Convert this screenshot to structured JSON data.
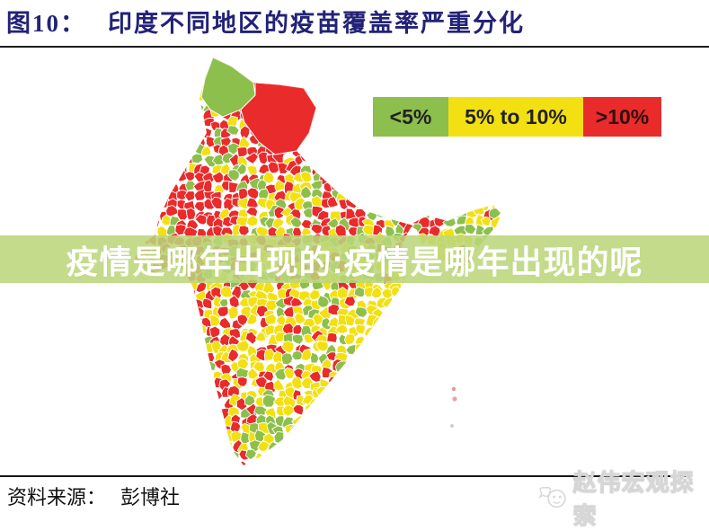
{
  "figure_header": {
    "label": "图10：",
    "title": "印度不同地区的疫苗覆盖率严重分化",
    "title_color": "#232277"
  },
  "legend": {
    "items": [
      {
        "label": "<5%",
        "color": "#8dbf4c"
      },
      {
        "label": "5% to 10%",
        "color": "#f2e013"
      },
      {
        "label": ">10%",
        "color": "#e92b2c"
      }
    ]
  },
  "overlay_banner": {
    "text": "疫情是哪年出现的:疫情是哪年出现的呢",
    "background": "#c4db8f",
    "text_color": "#ffffff"
  },
  "map": {
    "region": "India",
    "description": "district-level vaccine coverage choropleth",
    "colors": {
      "green": "#8dbf4c",
      "yellow": "#f2e013",
      "red": "#e92b2c"
    },
    "classes": [
      {
        "label": "<5%",
        "color_name": "green"
      },
      {
        "label": "5% to 10%",
        "color_name": "yellow"
      },
      {
        "label": ">10%",
        "color_name": "red"
      }
    ]
  },
  "source_line": {
    "label": "资料来源：",
    "value": "彭博社"
  },
  "watermark": {
    "text": "赵伟宏观探索"
  }
}
